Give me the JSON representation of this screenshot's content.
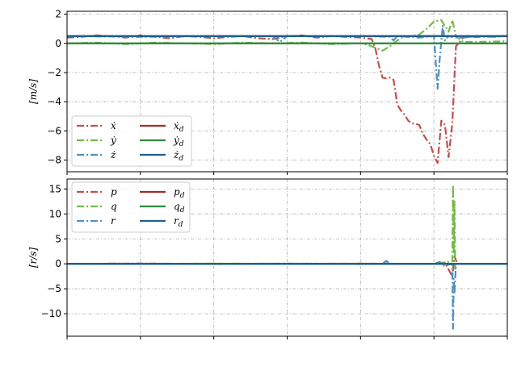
{
  "chart_data": [
    {
      "type": "line",
      "ylabel": "[m/s]",
      "ylim": [
        -8.8,
        2.2
      ],
      "yticks": [
        2,
        0,
        -2,
        -4,
        -6,
        -8
      ],
      "ytick_labels": [
        "2",
        "0",
        "−2",
        "−4",
        "−6",
        "−8"
      ],
      "xlim": [
        0,
        600
      ],
      "xticks": [
        0,
        100,
        200,
        300,
        400,
        500,
        600
      ],
      "xtick_labels": [
        "",
        "",
        "",
        "",
        "",
        "",
        ""
      ],
      "grid": true,
      "legend": {
        "placement": "lower-left",
        "columns": 2,
        "entries": [
          {
            "label": "ẋ",
            "series": "xdot",
            "style": "dashdot",
            "color": "#c0504d"
          },
          {
            "label": "ẏ",
            "series": "ydot",
            "style": "dashdot",
            "color": "#76b947"
          },
          {
            "label": "ż",
            "series": "zdot",
            "style": "dashdot",
            "color": "#4f90bf"
          },
          {
            "label": "ẋd",
            "series": "xdot_d",
            "style": "solid",
            "color": "#a52a2a"
          },
          {
            "label": "ẏd",
            "series": "ydot_d",
            "style": "solid",
            "color": "#2e8b3e"
          },
          {
            "label": "żd",
            "series": "zdot_d",
            "style": "solid",
            "color": "#1f5f96"
          }
        ]
      },
      "series": [
        {
          "name": "ẋ",
          "style": "dashdot",
          "color": "#c0504d",
          "x": [
            0,
            20,
            40,
            60,
            80,
            100,
            120,
            140,
            160,
            180,
            200,
            220,
            240,
            260,
            280,
            300,
            320,
            340,
            360,
            380,
            400,
            415,
            420,
            425,
            430,
            435,
            440,
            445,
            450,
            455,
            460,
            465,
            470,
            475,
            480,
            485,
            490,
            495,
            500,
            505,
            510,
            515,
            520,
            525,
            530,
            540,
            560,
            580,
            600
          ],
          "y": [
            0.4,
            0.45,
            0.55,
            0.5,
            0.4,
            0.55,
            0.45,
            0.35,
            0.5,
            0.45,
            0.35,
            0.45,
            0.5,
            0.35,
            0.3,
            0.5,
            0.55,
            0.4,
            0.5,
            0.45,
            0.4,
            0.3,
            -0.3,
            -1.5,
            -2.35,
            -2.4,
            -2.35,
            -2.5,
            -4.2,
            -4.6,
            -4.9,
            -5.3,
            -5.5,
            -5.5,
            -5.6,
            -6.2,
            -6.6,
            -6.9,
            -7.7,
            -8.2,
            -5.3,
            -5.6,
            -7.8,
            -5.5,
            -0.2,
            0.4,
            0.5,
            0.45,
            0.5
          ]
        },
        {
          "name": "ẏ",
          "style": "dashdot",
          "color": "#76b947",
          "x": [
            0,
            40,
            80,
            120,
            160,
            200,
            240,
            280,
            320,
            360,
            400,
            410,
            420,
            430,
            440,
            450,
            460,
            470,
            480,
            490,
            500,
            510,
            520,
            525,
            530,
            540,
            560,
            600
          ],
          "y": [
            0.0,
            0.05,
            -0.05,
            0.05,
            0.0,
            -0.05,
            0.05,
            0.0,
            0.05,
            -0.05,
            0.0,
            -0.1,
            -0.3,
            -0.5,
            -0.2,
            0.2,
            0.5,
            0.5,
            0.6,
            1.0,
            1.5,
            1.6,
            0.8,
            1.6,
            0.5,
            0.1,
            0.1,
            0.15
          ]
        },
        {
          "name": "ż",
          "style": "dashdot",
          "color": "#4f90bf",
          "x": [
            0,
            100,
            200,
            280,
            290,
            300,
            400,
            440,
            445,
            450,
            480,
            500,
            505,
            508,
            512,
            515,
            520,
            530,
            600
          ],
          "y": [
            0.5,
            0.45,
            0.5,
            0.5,
            0.1,
            0.5,
            0.5,
            0.45,
            0.2,
            0.5,
            0.4,
            0.5,
            -3.1,
            -1.0,
            1.2,
            0.2,
            0.5,
            0.4,
            0.5
          ]
        },
        {
          "name": "ẋd",
          "style": "solid",
          "color": "#a52a2a",
          "x": [
            0,
            600
          ],
          "y": [
            0.5,
            0.5
          ]
        },
        {
          "name": "ẏd",
          "style": "solid",
          "color": "#2e8b3e",
          "x": [
            0,
            600
          ],
          "y": [
            0.0,
            0.0
          ]
        },
        {
          "name": "żd",
          "style": "solid",
          "color": "#1f5f96",
          "x": [
            0,
            600
          ],
          "y": [
            0.5,
            0.5
          ]
        }
      ]
    },
    {
      "type": "line",
      "ylabel": "[r/s]",
      "ylim": [
        -14.5,
        17.0
      ],
      "yticks": [
        15,
        10,
        5,
        0,
        -5,
        -10
      ],
      "ytick_labels": [
        "15",
        "10",
        "5",
        "0",
        "−5",
        "−10"
      ],
      "xlim": [
        0,
        600
      ],
      "xticks": [
        0,
        100,
        200,
        300,
        400,
        500,
        600
      ],
      "xtick_labels": [
        "",
        "",
        "",
        "",
        "",
        "",
        ""
      ],
      "grid": true,
      "legend": {
        "placement": "upper-left",
        "columns": 2,
        "entries": [
          {
            "label": "p",
            "series": "p",
            "style": "dashdot",
            "color": "#c0504d"
          },
          {
            "label": "q",
            "series": "q",
            "style": "dashdot",
            "color": "#76b947"
          },
          {
            "label": "r",
            "series": "r",
            "style": "dashdot",
            "color": "#4f90bf"
          },
          {
            "label": "pd",
            "series": "p_d",
            "style": "solid",
            "color": "#a52a2a"
          },
          {
            "label": "qd",
            "series": "q_d",
            "style": "solid",
            "color": "#2e8b3e"
          },
          {
            "label": "rd",
            "series": "r_d",
            "style": "solid",
            "color": "#1f5f96"
          }
        ]
      },
      "series": [
        {
          "name": "p",
          "style": "dashdot",
          "color": "#c0504d",
          "x": [
            0,
            100,
            200,
            300,
            400,
            500,
            515,
            525,
            528,
            532,
            600
          ],
          "y": [
            0.0,
            0.05,
            -0.05,
            0.0,
            0.05,
            0.0,
            0.2,
            -2.5,
            1.5,
            0.0,
            0.0
          ]
        },
        {
          "name": "q",
          "style": "dashdot",
          "color": "#76b947",
          "x": [
            0,
            100,
            200,
            300,
            400,
            500,
            525,
            526,
            527,
            528,
            529,
            530,
            600
          ],
          "y": [
            0.0,
            0.0,
            0.05,
            0.0,
            -0.05,
            0.0,
            0.5,
            15.8,
            2.0,
            12.5,
            -1.0,
            0.0,
            0.0
          ]
        },
        {
          "name": "r",
          "style": "dashdot",
          "color": "#4f90bf",
          "x": [
            0,
            100,
            200,
            300,
            400,
            430,
            435,
            440,
            500,
            508,
            512,
            525,
            526,
            527,
            528,
            530,
            600
          ],
          "y": [
            0.0,
            0.05,
            0.0,
            0.05,
            0.0,
            0.0,
            0.6,
            0.0,
            0.0,
            0.4,
            -0.4,
            0.0,
            -13.0,
            -3.0,
            -6.0,
            0.0,
            0.0
          ]
        },
        {
          "name": "pd",
          "style": "solid",
          "color": "#a52a2a",
          "x": [
            0,
            600
          ],
          "y": [
            0.0,
            0.0
          ]
        },
        {
          "name": "qd",
          "style": "solid",
          "color": "#2e8b3e",
          "x": [
            0,
            600
          ],
          "y": [
            0.0,
            0.0
          ]
        },
        {
          "name": "rd",
          "style": "solid",
          "color": "#1f5f96",
          "x": [
            0,
            600
          ],
          "y": [
            0.0,
            0.0
          ]
        }
      ]
    }
  ]
}
